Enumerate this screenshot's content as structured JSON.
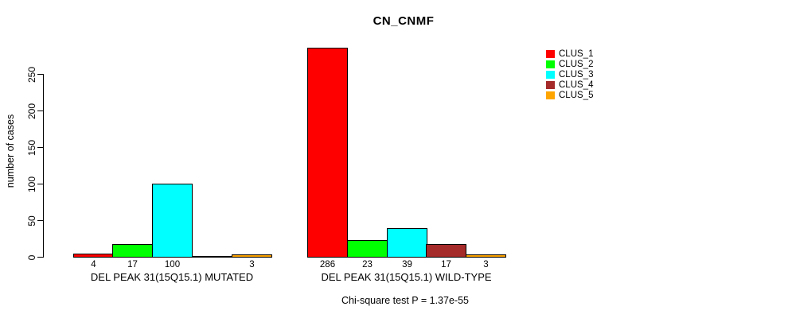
{
  "chart_data": {
    "type": "bar",
    "title": "CN_CNMF",
    "ylabel": "number of cases",
    "xlabel": "",
    "ylim": [
      0,
      290
    ],
    "yticks": [
      0,
      50,
      100,
      150,
      200,
      250
    ],
    "grid": false,
    "legend_position": "top-right",
    "clusters": [
      {
        "name": "CLUS_1",
        "color": "#FF0000"
      },
      {
        "name": "CLUS_2",
        "color": "#00FF00"
      },
      {
        "name": "CLUS_3",
        "color": "#00FFFF"
      },
      {
        "name": "CLUS_4",
        "color": "#A52A2A"
      },
      {
        "name": "CLUS_5",
        "color": "#FFA500"
      }
    ],
    "groups": [
      {
        "label": "DEL PEAK 31(15Q15.1) MUTATED",
        "values": [
          4,
          17,
          100,
          0,
          3
        ],
        "value_labels": [
          "4",
          "17",
          "100",
          "",
          "3"
        ]
      },
      {
        "label": "DEL PEAK 31(15Q15.1) WILD-TYPE",
        "values": [
          286,
          23,
          39,
          17,
          3
        ],
        "value_labels": [
          "286",
          "23",
          "39",
          "17",
          "3"
        ]
      }
    ],
    "annotation": "Chi-square test P = 1.37e-55"
  }
}
